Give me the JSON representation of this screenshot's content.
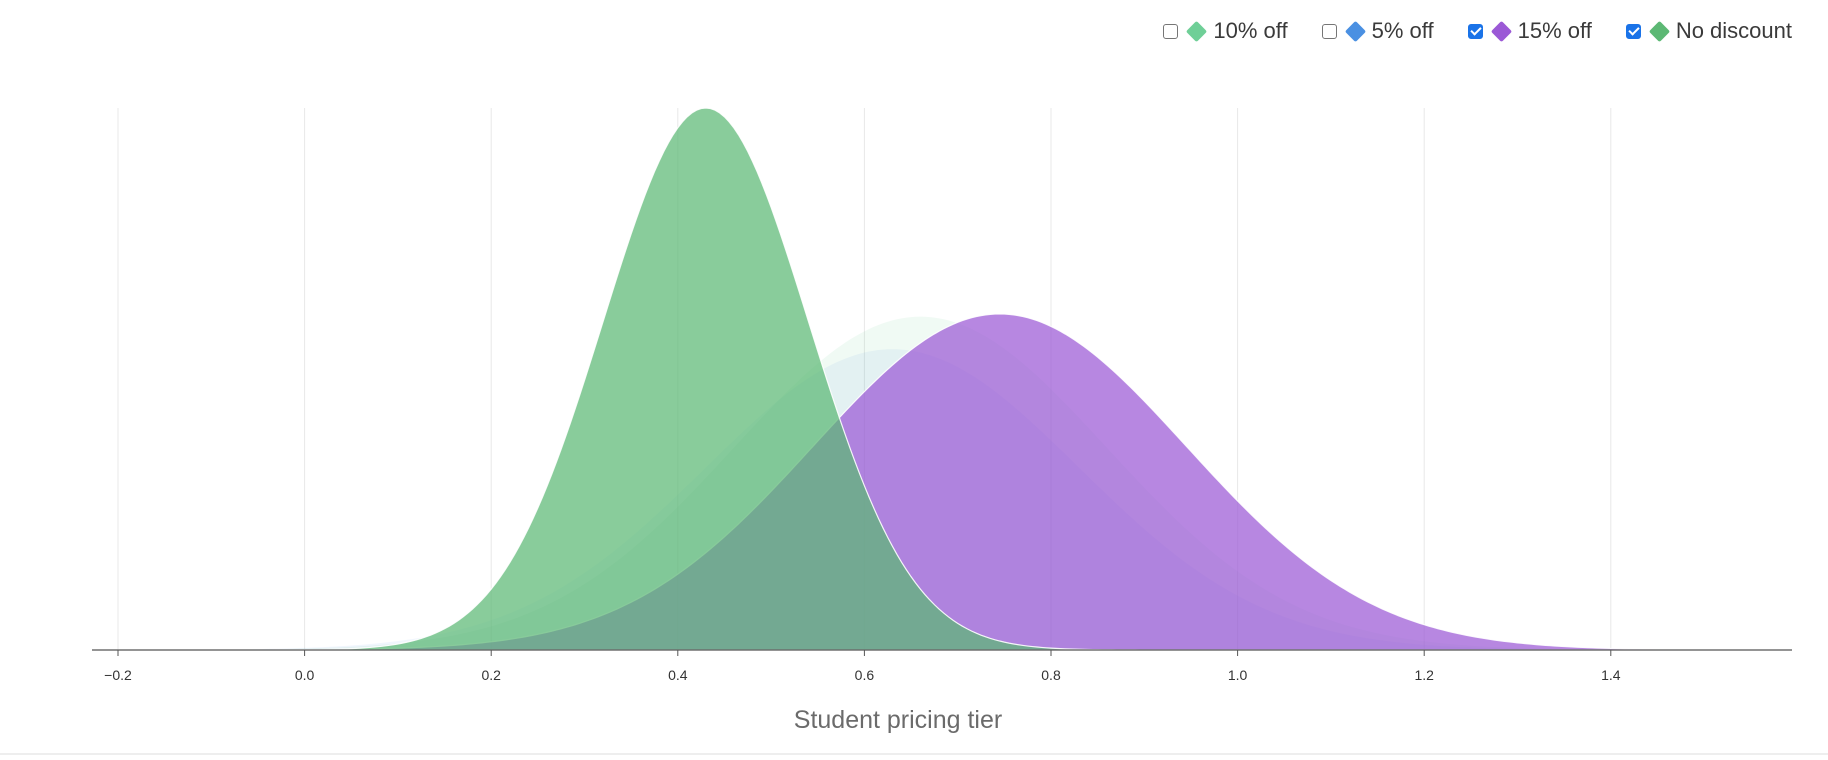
{
  "chart_data": {
    "type": "area",
    "xlabel": "Student pricing tier",
    "ylabel": "",
    "xlim": [
      -0.2,
      1.5
    ],
    "xticks": [
      "−0.2",
      "0.0",
      "0.2",
      "0.4",
      "0.6",
      "0.8",
      "1.0",
      "1.2",
      "1.4"
    ],
    "xtick_values": [
      -0.2,
      0.0,
      0.2,
      0.4,
      0.6,
      0.8,
      1.0,
      1.2,
      1.4
    ],
    "grid": "vertical",
    "legend_position": "top-right",
    "series": [
      {
        "name": "10% off",
        "checked": false,
        "color": "#6fcf97",
        "opacity": 0.1,
        "mean": 0.66,
        "sd": 0.2,
        "peak": 0.615
      },
      {
        "name": "5% off",
        "checked": false,
        "color": "#4a90e2",
        "opacity": 0.08,
        "mean": 0.63,
        "sd": 0.2,
        "peak": 0.555
      },
      {
        "name": "15% off",
        "checked": true,
        "color": "#9b59d6",
        "opacity": 0.72,
        "mean": 0.745,
        "sd": 0.2,
        "peak": 0.62
      },
      {
        "name": "No discount",
        "checked": true,
        "color": "#5cb874",
        "opacity": 0.72,
        "mean": 0.43,
        "sd": 0.11,
        "peak": 1.0
      }
    ]
  }
}
